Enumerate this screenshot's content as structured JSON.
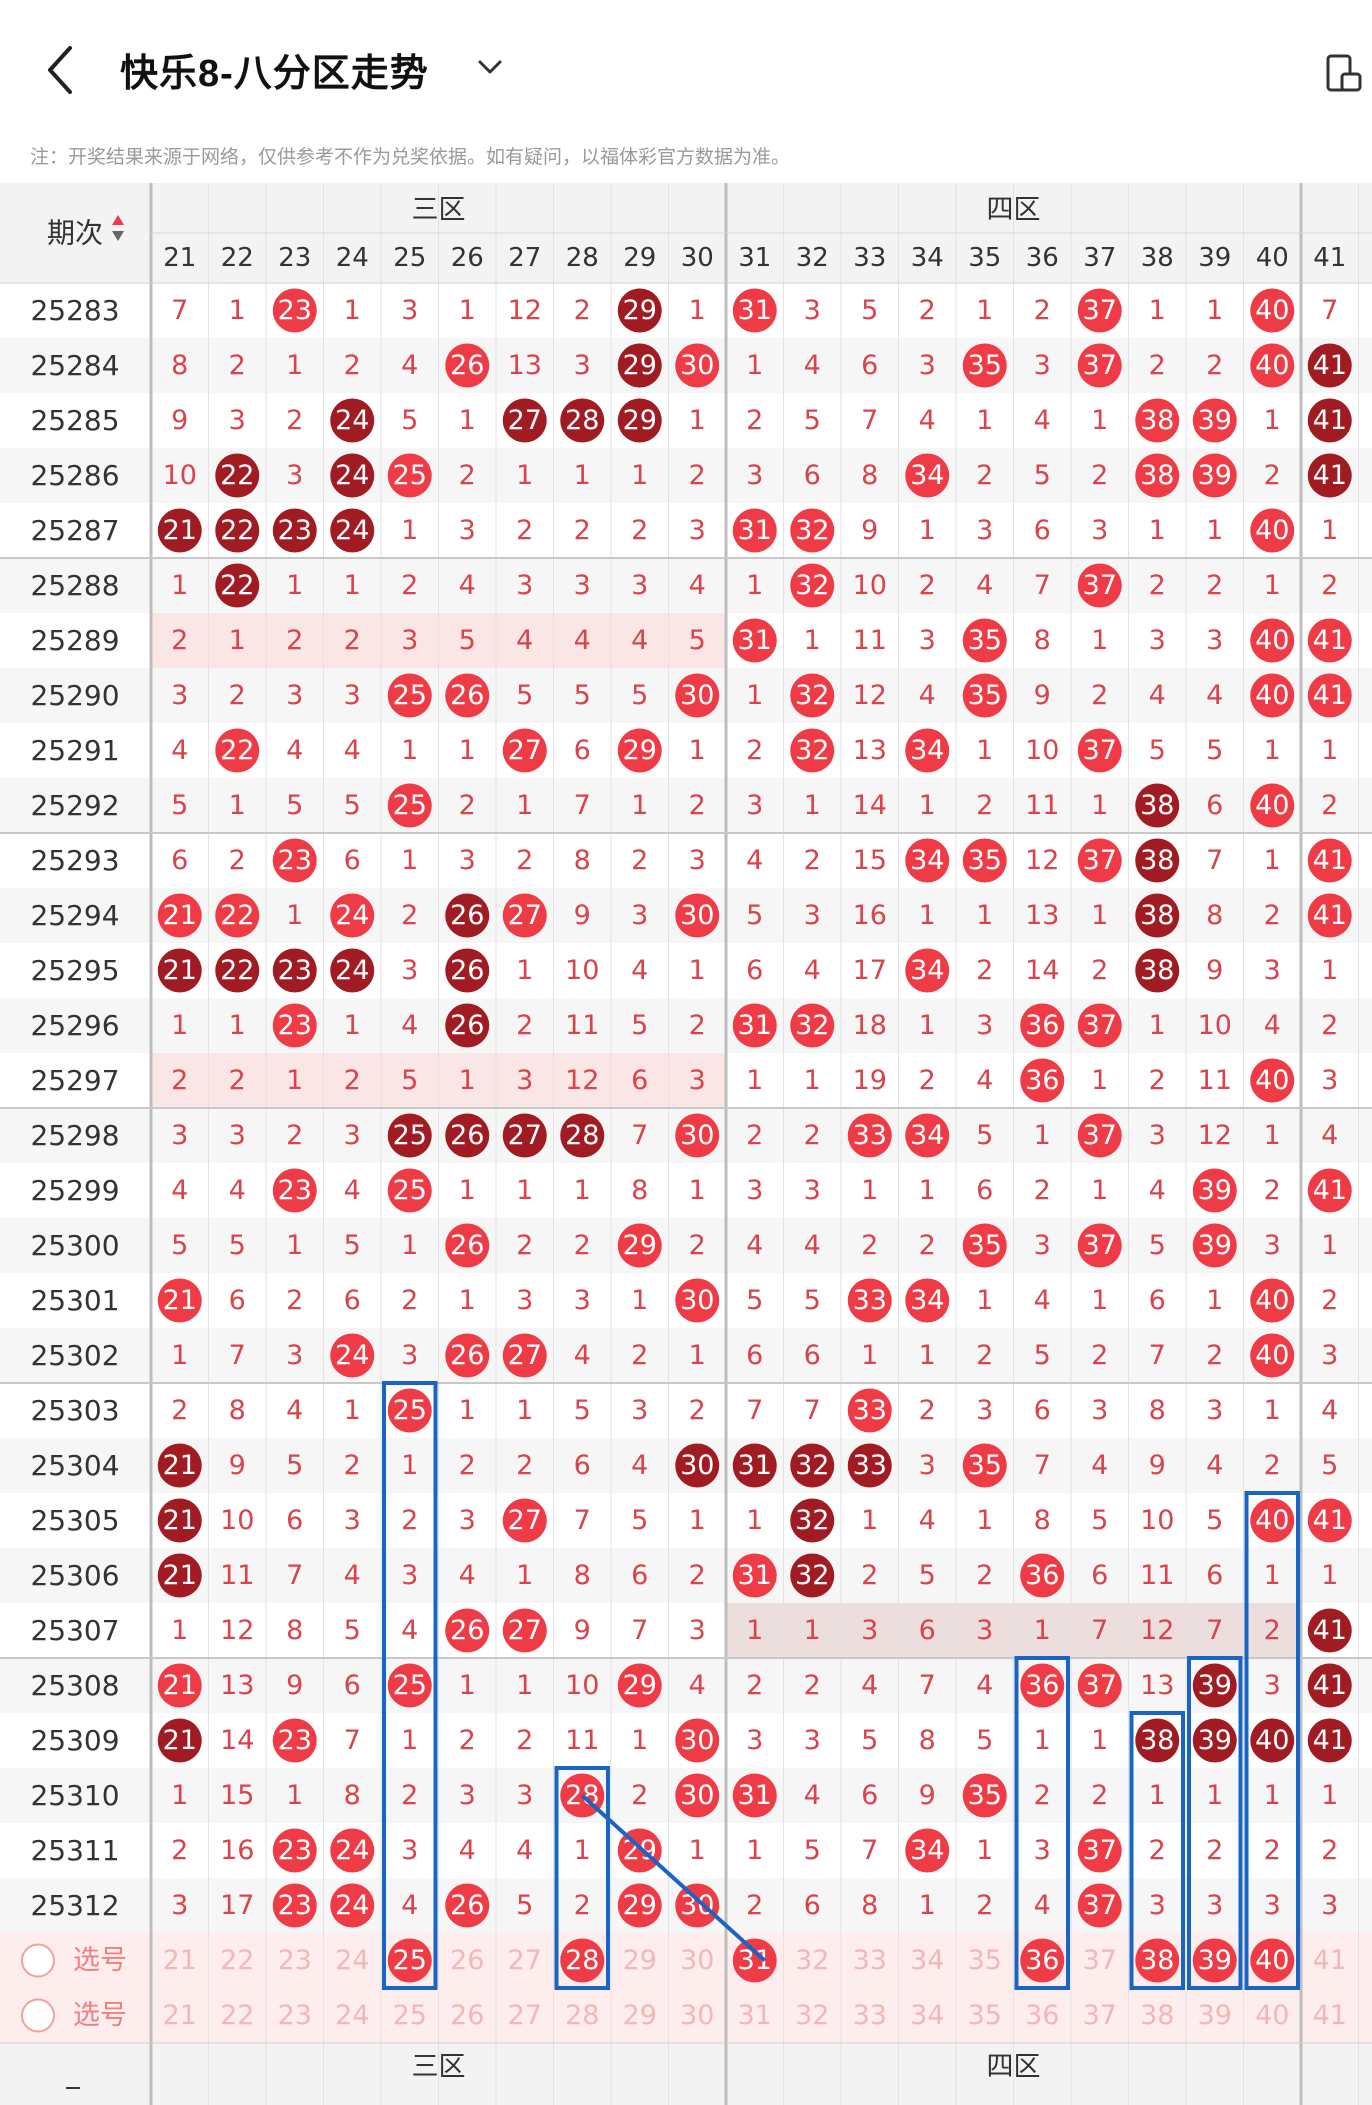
{
  "header": {
    "title": "快乐8-八分区走势",
    "back_icon": "chevron-left-icon",
    "dropdown_icon": "chevron-down-icon",
    "side_icon": "phone-layout-icon"
  },
  "notice": "注：开奖结果来源于网络，仅供参考不作为兑奖依据。如有疑问，以福体彩官方数据为准。",
  "table": {
    "period_header": "期次",
    "sort_icon": "sort-arrows-icon",
    "zones": [
      {
        "name": "三区",
        "start": 21,
        "end": 30
      },
      {
        "name": "四区",
        "start": 31,
        "end": 40
      }
    ],
    "columns": [
      21,
      22,
      23,
      24,
      25,
      26,
      27,
      28,
      29,
      30,
      31,
      32,
      33,
      34,
      35,
      36,
      37,
      38,
      39,
      40,
      41
    ],
    "rows": [
      {
        "period": "25283",
        "cells": [
          "7",
          "1",
          "23",
          "1",
          "3",
          "1",
          "12",
          "2",
          "29",
          "1",
          "31",
          "3",
          "5",
          "2",
          "1",
          "2",
          "37",
          "1",
          "1",
          "40",
          "7"
        ],
        "dark": [
          "29"
        ]
      },
      {
        "period": "25284",
        "cells": [
          "8",
          "2",
          "1",
          "2",
          "4",
          "26",
          "13",
          "3",
          "29",
          "30",
          "1",
          "4",
          "6",
          "3",
          "35",
          "3",
          "37",
          "2",
          "2",
          "40",
          "41"
        ],
        "dark": [
          "29",
          "41"
        ]
      },
      {
        "period": "25285",
        "cells": [
          "9",
          "3",
          "2",
          "24",
          "5",
          "1",
          "27",
          "28",
          "29",
          "1",
          "2",
          "5",
          "7",
          "4",
          "1",
          "4",
          "1",
          "38",
          "39",
          "1",
          "41"
        ],
        "dark": [
          "24",
          "27",
          "28",
          "29",
          "41"
        ]
      },
      {
        "period": "25286",
        "cells": [
          "10",
          "22",
          "3",
          "24",
          "25",
          "2",
          "1",
          "1",
          "1",
          "2",
          "3",
          "6",
          "8",
          "34",
          "2",
          "5",
          "2",
          "38",
          "39",
          "2",
          "41"
        ],
        "dark": [
          "22",
          "24",
          "41"
        ]
      },
      {
        "period": "25287",
        "cells": [
          "21",
          "22",
          "23",
          "24",
          "1",
          "3",
          "2",
          "2",
          "2",
          "3",
          "31",
          "32",
          "9",
          "1",
          "3",
          "6",
          "3",
          "1",
          "1",
          "40",
          "1"
        ],
        "dark": [
          "21",
          "22",
          "23",
          "24"
        ]
      },
      {
        "period": "25288",
        "cells": [
          "1",
          "22",
          "1",
          "1",
          "2",
          "4",
          "3",
          "3",
          "3",
          "4",
          "1",
          "32",
          "10",
          "2",
          "4",
          "7",
          "37",
          "2",
          "2",
          "1",
          "2"
        ],
        "dark": [
          "22"
        ]
      },
      {
        "period": "25289",
        "cells": [
          "2",
          "1",
          "2",
          "2",
          "3",
          "5",
          "4",
          "4",
          "4",
          "5",
          "31",
          "1",
          "11",
          "3",
          "35",
          "8",
          "1",
          "3",
          "3",
          "40",
          "41"
        ],
        "dark": []
      },
      {
        "period": "25290",
        "cells": [
          "3",
          "2",
          "3",
          "3",
          "25",
          "26",
          "5",
          "5",
          "5",
          "30",
          "1",
          "32",
          "12",
          "4",
          "35",
          "9",
          "2",
          "4",
          "4",
          "40",
          "41"
        ],
        "dark": []
      },
      {
        "period": "25291",
        "cells": [
          "4",
          "22",
          "4",
          "4",
          "1",
          "1",
          "27",
          "6",
          "29",
          "1",
          "2",
          "32",
          "13",
          "34",
          "1",
          "10",
          "37",
          "5",
          "5",
          "1",
          "1"
        ],
        "dark": []
      },
      {
        "period": "25292",
        "cells": [
          "5",
          "1",
          "5",
          "5",
          "25",
          "2",
          "1",
          "7",
          "1",
          "2",
          "3",
          "1",
          "14",
          "1",
          "2",
          "11",
          "1",
          "38",
          "6",
          "40",
          "2"
        ],
        "dark": [
          "38"
        ]
      },
      {
        "period": "25293",
        "cells": [
          "6",
          "2",
          "23",
          "6",
          "1",
          "3",
          "2",
          "8",
          "2",
          "3",
          "4",
          "2",
          "15",
          "34",
          "35",
          "12",
          "37",
          "38",
          "7",
          "1",
          "41"
        ],
        "dark": [
          "38"
        ]
      },
      {
        "period": "25294",
        "cells": [
          "21",
          "22",
          "1",
          "24",
          "2",
          "26",
          "27",
          "9",
          "3",
          "30",
          "5",
          "3",
          "16",
          "1",
          "1",
          "13",
          "1",
          "38",
          "8",
          "2",
          "41"
        ],
        "dark": [
          "26",
          "38"
        ]
      },
      {
        "period": "25295",
        "cells": [
          "21",
          "22",
          "23",
          "24",
          "3",
          "26",
          "1",
          "10",
          "4",
          "1",
          "6",
          "4",
          "17",
          "34",
          "2",
          "14",
          "2",
          "38",
          "9",
          "3",
          "1"
        ],
        "dark": [
          "21",
          "22",
          "23",
          "24",
          "26",
          "38"
        ]
      },
      {
        "period": "25296",
        "cells": [
          "1",
          "1",
          "23",
          "1",
          "4",
          "26",
          "2",
          "11",
          "5",
          "2",
          "31",
          "32",
          "18",
          "1",
          "3",
          "36",
          "37",
          "1",
          "10",
          "4",
          "2"
        ],
        "dark": [
          "26"
        ]
      },
      {
        "period": "25297",
        "cells": [
          "2",
          "2",
          "1",
          "2",
          "5",
          "1",
          "3",
          "12",
          "6",
          "3",
          "1",
          "1",
          "19",
          "2",
          "4",
          "36",
          "1",
          "2",
          "11",
          "40",
          "3"
        ],
        "dark": []
      },
      {
        "period": "25298",
        "cells": [
          "3",
          "3",
          "2",
          "3",
          "25",
          "26",
          "27",
          "28",
          "7",
          "30",
          "2",
          "2",
          "33",
          "34",
          "5",
          "1",
          "37",
          "3",
          "12",
          "1",
          "4"
        ],
        "dark": [
          "25",
          "26",
          "27",
          "28"
        ]
      },
      {
        "period": "25299",
        "cells": [
          "4",
          "4",
          "23",
          "4",
          "25",
          "1",
          "1",
          "1",
          "8",
          "1",
          "3",
          "3",
          "1",
          "1",
          "6",
          "2",
          "1",
          "4",
          "39",
          "2",
          "41"
        ],
        "dark": []
      },
      {
        "period": "25300",
        "cells": [
          "5",
          "5",
          "1",
          "5",
          "1",
          "26",
          "2",
          "2",
          "29",
          "2",
          "4",
          "4",
          "2",
          "2",
          "35",
          "3",
          "37",
          "5",
          "39",
          "3",
          "1"
        ],
        "dark": []
      },
      {
        "period": "25301",
        "cells": [
          "21",
          "6",
          "2",
          "6",
          "2",
          "1",
          "3",
          "3",
          "1",
          "30",
          "5",
          "5",
          "33",
          "34",
          "1",
          "4",
          "1",
          "6",
          "1",
          "40",
          "2"
        ],
        "dark": []
      },
      {
        "period": "25302",
        "cells": [
          "1",
          "7",
          "3",
          "24",
          "3",
          "26",
          "27",
          "4",
          "2",
          "1",
          "6",
          "6",
          "1",
          "1",
          "2",
          "5",
          "2",
          "7",
          "2",
          "40",
          "3"
        ],
        "dark": []
      },
      {
        "period": "25303",
        "cells": [
          "2",
          "8",
          "4",
          "1",
          "25",
          "1",
          "1",
          "5",
          "3",
          "2",
          "7",
          "7",
          "33",
          "2",
          "3",
          "6",
          "3",
          "8",
          "3",
          "1",
          "4"
        ],
        "dark": []
      },
      {
        "period": "25304",
        "cells": [
          "21",
          "9",
          "5",
          "2",
          "1",
          "2",
          "2",
          "6",
          "4",
          "30",
          "31",
          "32",
          "33",
          "3",
          "35",
          "7",
          "4",
          "9",
          "4",
          "2",
          "5"
        ],
        "dark": [
          "21",
          "30",
          "31",
          "32",
          "33"
        ]
      },
      {
        "period": "25305",
        "cells": [
          "21",
          "10",
          "6",
          "3",
          "2",
          "3",
          "27",
          "7",
          "5",
          "1",
          "1",
          "32",
          "1",
          "4",
          "1",
          "8",
          "5",
          "10",
          "5",
          "40",
          "41"
        ],
        "dark": [
          "21",
          "32"
        ]
      },
      {
        "period": "25306",
        "cells": [
          "21",
          "11",
          "7",
          "4",
          "3",
          "4",
          "1",
          "8",
          "6",
          "2",
          "31",
          "32",
          "2",
          "5",
          "2",
          "36",
          "6",
          "11",
          "6",
          "1",
          "1"
        ],
        "dark": [
          "21",
          "32"
        ]
      },
      {
        "period": "25307",
        "cells": [
          "1",
          "12",
          "8",
          "5",
          "4",
          "26",
          "27",
          "9",
          "7",
          "3",
          "1",
          "1",
          "3",
          "6",
          "3",
          "1",
          "7",
          "12",
          "7",
          "2",
          "41"
        ],
        "dark": [
          "41"
        ]
      },
      {
        "period": "25308",
        "cells": [
          "21",
          "13",
          "9",
          "6",
          "25",
          "1",
          "1",
          "10",
          "29",
          "4",
          "2",
          "2",
          "4",
          "7",
          "4",
          "36",
          "37",
          "13",
          "39",
          "3",
          "41"
        ],
        "dark": [
          "39",
          "41"
        ]
      },
      {
        "period": "25309",
        "cells": [
          "21",
          "14",
          "23",
          "7",
          "1",
          "2",
          "2",
          "11",
          "1",
          "30",
          "3",
          "3",
          "5",
          "8",
          "5",
          "1",
          "1",
          "38",
          "39",
          "40",
          "41"
        ],
        "dark": [
          "21",
          "38",
          "39",
          "40",
          "41"
        ]
      },
      {
        "period": "25310",
        "cells": [
          "1",
          "15",
          "1",
          "8",
          "2",
          "3",
          "3",
          "28",
          "2",
          "30",
          "31",
          "4",
          "6",
          "9",
          "35",
          "2",
          "2",
          "1",
          "1",
          "1",
          "1"
        ],
        "dark": []
      },
      {
        "period": "25311",
        "cells": [
          "2",
          "16",
          "23",
          "24",
          "3",
          "4",
          "4",
          "1",
          "29",
          "1",
          "1",
          "5",
          "7",
          "34",
          "1",
          "3",
          "37",
          "2",
          "2",
          "2",
          "2"
        ],
        "dark": []
      },
      {
        "period": "25312",
        "cells": [
          "3",
          "17",
          "23",
          "24",
          "4",
          "26",
          "5",
          "2",
          "29",
          "30",
          "2",
          "6",
          "8",
          "1",
          "2",
          "4",
          "37",
          "3",
          "3",
          "3",
          "3"
        ],
        "dark": []
      }
    ],
    "select_label": "选号",
    "select_rows": [
      {
        "label": "选号",
        "selected": [
          "25",
          "28",
          "31",
          "36",
          "38",
          "39",
          "40"
        ]
      },
      {
        "label": "选号",
        "selected": []
      }
    ]
  },
  "colors": {
    "ball_red": "#ee3b45",
    "ball_dark": "#a11b22",
    "miss_text": "#d9434b",
    "highlight_box": "#1a64c4",
    "select_bg": "#fdeeed",
    "header_bg": "#f3f3f3"
  }
}
